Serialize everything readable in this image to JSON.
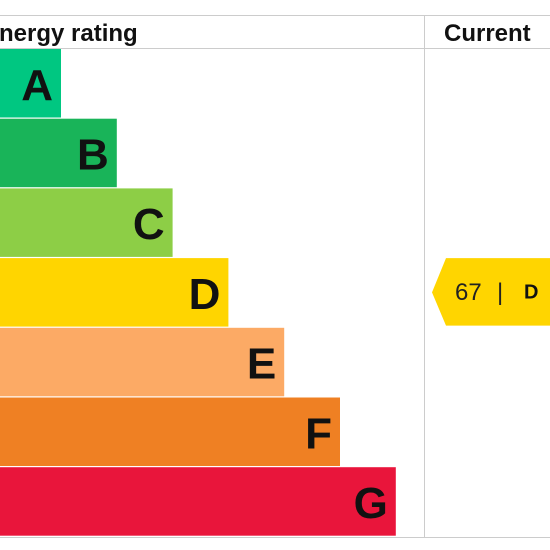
{
  "header": {
    "title": "Energy rating",
    "current": "Current"
  },
  "bands": [
    {
      "letter": "A",
      "color": "#00c781"
    },
    {
      "letter": "B",
      "color": "#19b459"
    },
    {
      "letter": "C",
      "color": "#8dce46"
    },
    {
      "letter": "D",
      "color": "#ffd500"
    },
    {
      "letter": "E",
      "color": "#fcaa65"
    },
    {
      "letter": "F",
      "color": "#ef8023"
    },
    {
      "letter": "G",
      "color": "#e9153b"
    }
  ],
  "current": {
    "score": 67,
    "separator": "|",
    "band": "D",
    "color": "#ffd500"
  }
}
